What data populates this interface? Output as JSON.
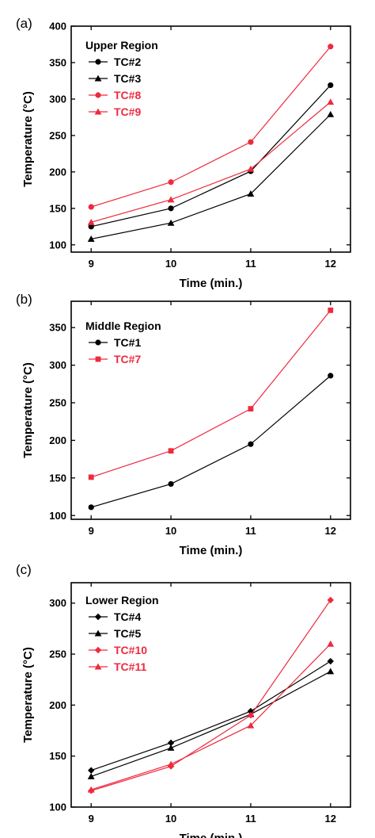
{
  "chart_data": [
    {
      "type": "line",
      "panel_label": "(a)",
      "legend_title": "Upper Region",
      "legend_placement": "top-left",
      "grid": false,
      "xlabel": "Time (min.)",
      "ylabel": "Temperature (°C)",
      "x": [
        9,
        10,
        11,
        12
      ],
      "xticks": [
        "9",
        "10",
        "11",
        "12"
      ],
      "xlim": [
        8.75,
        12.25
      ],
      "ylim": [
        90,
        400
      ],
      "yticks": [
        100,
        150,
        200,
        250,
        300,
        350,
        400
      ],
      "series": [
        {
          "name": "TC#2",
          "color": "#000000",
          "marker": "circle",
          "values": [
            125,
            150,
            201,
            319
          ]
        },
        {
          "name": "TC#3",
          "color": "#000000",
          "marker": "triangle",
          "values": [
            108,
            130,
            170,
            279
          ]
        },
        {
          "name": "TC#8",
          "color": "#ee2a3f",
          "marker": "circle",
          "values": [
            152,
            186,
            241,
            372
          ]
        },
        {
          "name": "TC#9",
          "color": "#ee2a3f",
          "marker": "triangle",
          "values": [
            131,
            162,
            204,
            296
          ]
        }
      ]
    },
    {
      "type": "line",
      "panel_label": "(b)",
      "legend_title": "Middle Region",
      "legend_placement": "top-left",
      "grid": false,
      "xlabel": "Time (min.)",
      "ylabel": "Temperature (°C)",
      "x": [
        9,
        10,
        11,
        12
      ],
      "xticks": [
        "9",
        "10",
        "11",
        "12"
      ],
      "xlim": [
        8.75,
        12.25
      ],
      "ylim": [
        95,
        385
      ],
      "yticks": [
        100,
        150,
        200,
        250,
        300,
        350
      ],
      "series": [
        {
          "name": "TC#1",
          "color": "#000000",
          "marker": "circle",
          "values": [
            111,
            142,
            195,
            286
          ]
        },
        {
          "name": "TC#7",
          "color": "#ee2a3f",
          "marker": "square",
          "values": [
            151,
            186,
            242,
            373
          ]
        }
      ]
    },
    {
      "type": "line",
      "panel_label": "(c)",
      "legend_title": "Lower Region",
      "legend_placement": "top-left",
      "grid": false,
      "xlabel": "Time (min.)",
      "ylabel": "Temperature (°C)",
      "x": [
        9,
        10,
        11,
        12
      ],
      "xticks": [
        "9",
        "10",
        "11",
        "12"
      ],
      "xlim": [
        8.75,
        12.25
      ],
      "ylim": [
        100,
        320
      ],
      "yticks": [
        100,
        150,
        200,
        250,
        300
      ],
      "series": [
        {
          "name": "TC#4",
          "color": "#000000",
          "marker": "diamond",
          "values": [
            136,
            163,
            194,
            243
          ]
        },
        {
          "name": "TC#5",
          "color": "#000000",
          "marker": "triangle",
          "values": [
            130,
            158,
            191,
            233
          ]
        },
        {
          "name": "TC#10",
          "color": "#ee2a3f",
          "marker": "diamond",
          "values": [
            116,
            140,
            190,
            303
          ]
        },
        {
          "name": "TC#11",
          "color": "#ee2a3f",
          "marker": "triangle",
          "values": [
            117,
            142,
            180,
            260
          ]
        }
      ]
    }
  ]
}
